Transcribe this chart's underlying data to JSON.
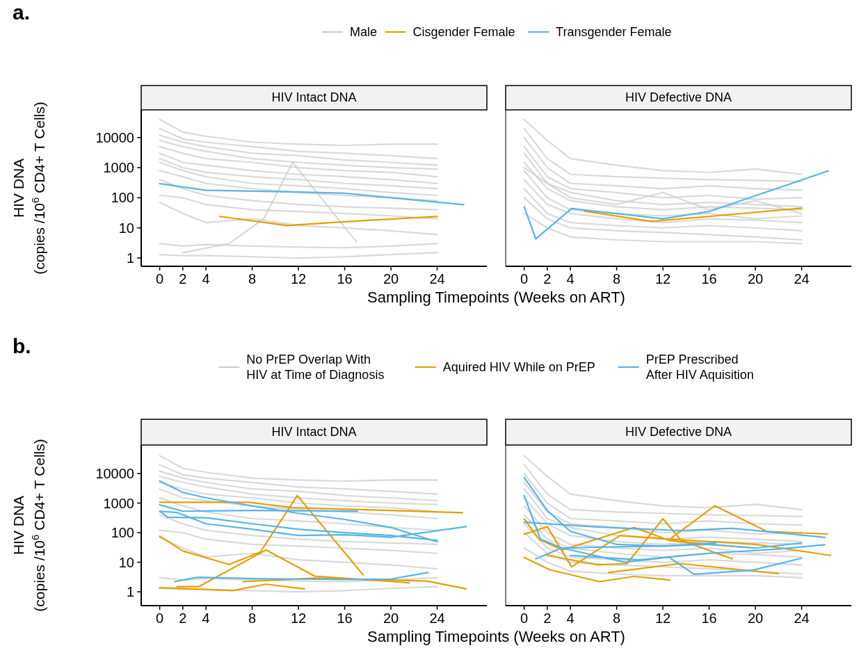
{
  "chart_data": [
    {
      "type": "line",
      "title": "HIV Intact DNA",
      "annotations": [
        "a."
      ],
      "xlabel": "Sampling Timepoints (Weeks on ART)",
      "ylabel": "HIV DNA\n(copies /10$^{6}$ CD4+ T Cells)",
      "log": "y",
      "legend": "top",
      "xlim": [
        -1.6,
        28.3
      ],
      "xticks": [
        0,
        2,
        4,
        8,
        12,
        16,
        20,
        24
      ],
      "ylim": [
        0.53,
        83000
      ],
      "yticks": [
        1,
        10,
        100,
        1000,
        10000
      ],
      "x": [
        0,
        2,
        4,
        8,
        12,
        16,
        20,
        24
      ],
      "series": [
        {
          "name": "Male",
          "color": "#cccccc",
          "values": [
            40000,
            15000,
            11000,
            7000,
            6000,
            5500,
            6000,
            6000
          ]
        },
        {
          "color": "#cccccc",
          "values": [
            20000,
            9000,
            7000,
            5000,
            3500,
            3000,
            2500,
            2000
          ]
        },
        {
          "color": "#cccccc",
          "values": [
            12000,
            7000,
            5000,
            3000,
            2500,
            1800,
            1500,
            1200
          ]
        },
        {
          "color": "#cccccc",
          "values": [
            8000,
            5000,
            3500,
            2000,
            1500,
            1200,
            1000,
            900
          ]
        },
        {
          "color": "#cccccc",
          "values": [
            5000,
            3000,
            2000,
            1500,
            1000,
            800,
            700,
            500
          ]
        },
        {
          "color": "#cccccc",
          "values": [
            3000,
            1500,
            1200,
            800,
            600,
            500,
            400,
            300
          ]
        },
        {
          "color": "#cccccc",
          "values": [
            2000,
            1000,
            700,
            500,
            400,
            300,
            250,
            200
          ]
        },
        {
          "color": "#cccccc",
          "values": [
            1500,
            800,
            500,
            300,
            250,
            200,
            150,
            120
          ]
        },
        {
          "color": "#cccccc",
          "values": [
            800,
            500,
            300,
            200,
            150,
            120,
            100,
            80
          ]
        },
        {
          "color": "#cccccc",
          "values": [
            400,
            200,
            120,
            80,
            60,
            50,
            45,
            40
          ]
        },
        {
          "color": "#cccccc",
          "values": [
            120,
            100,
            60,
            40,
            35,
            30,
            25,
            20
          ]
        },
        {
          "color": "#cccccc",
          "values": [
            70,
            30,
            15,
            20,
            12,
            10,
            8,
            6
          ]
        },
        {
          "color": "#cccccc",
          "values": [
            3,
            2.5,
            2.8,
            2.5,
            2.3,
            2.2,
            2.5,
            3
          ]
        },
        {
          "color": "#cccccc",
          "values": [
            1.3,
            1.2,
            1.2,
            1.1,
            1,
            1.1,
            1.3,
            1.5
          ]
        },
        {
          "color": "#cccccc",
          "x": [
            2,
            6,
            9,
            11.5,
            17
          ],
          "values": [
            1.5,
            3,
            20,
            1500,
            3.5
          ]
        },
        {
          "name": "Cisgender Female",
          "color": "#e69f00",
          "x": [
            5.2,
            11,
            16,
            24
          ],
          "values": [
            24,
            12,
            16,
            24
          ]
        },
        {
          "name": "Transgender Female",
          "color": "#56b4e9",
          "x": [
            0,
            4,
            12,
            16,
            26.3
          ],
          "values": [
            295,
            178,
            155,
            142,
            59
          ]
        }
      ]
    },
    {
      "type": "line",
      "title": "HIV Defective DNA",
      "tick_labels": "x",
      "log": "y",
      "xlim": [
        -1.6,
        28.3
      ],
      "xticks": [
        0,
        2,
        4,
        8,
        12,
        16,
        20,
        24
      ],
      "ylim": [
        0.53,
        83000
      ],
      "yticks": [
        1,
        10,
        100,
        1000,
        10000
      ],
      "x": [
        0,
        2,
        4,
        8,
        12,
        16,
        20,
        24
      ],
      "series": [
        {
          "color": "#cccccc",
          "values": [
            40000,
            8000,
            2000,
            1200,
            800,
            700,
            900,
            600
          ]
        },
        {
          "color": "#cccccc",
          "values": [
            20000,
            2000,
            600,
            500,
            450,
            400,
            380,
            350
          ]
        },
        {
          "color": "#cccccc",
          "values": [
            10000,
            1000,
            300,
            250,
            200,
            250,
            200,
            180
          ]
        },
        {
          "color": "#cccccc",
          "values": [
            5000,
            500,
            200,
            150,
            100,
            120,
            90,
            100
          ]
        },
        {
          "color": "#cccccc",
          "values": [
            3000,
            300,
            150,
            80,
            60,
            70,
            60,
            50
          ]
        },
        {
          "color": "#cccccc",
          "values": [
            1500,
            200,
            80,
            50,
            40,
            50,
            45,
            40
          ]
        },
        {
          "color": "#cccccc",
          "values": [
            800,
            100,
            40,
            30,
            25,
            30,
            20,
            25
          ]
        },
        {
          "color": "#cccccc",
          "values": [
            400,
            60,
            30,
            20,
            15,
            20,
            18,
            15
          ]
        },
        {
          "color": "#cccccc",
          "values": [
            200,
            30,
            15,
            12,
            10,
            12,
            10,
            8
          ]
        },
        {
          "color": "#cccccc",
          "values": [
            100,
            20,
            10,
            8,
            7,
            6,
            5,
            4
          ]
        },
        {
          "color": "#cccccc",
          "values": [
            30,
            10,
            5,
            4,
            3.5,
            3.5,
            3.5,
            3
          ]
        },
        {
          "color": "#cccccc",
          "values": [
            1000,
            300,
            100,
            60,
            150,
            40,
            80,
            30
          ]
        },
        {
          "color": "#e69f00",
          "x": [
            5.2,
            11,
            16,
            24
          ],
          "values": [
            36,
            16.5,
            24,
            45
          ]
        },
        {
          "color": "#56b4e9",
          "x": [
            0,
            1,
            4.1,
            12,
            16,
            26.3
          ],
          "values": [
            50,
            4.3,
            44,
            20,
            35,
            780
          ]
        }
      ]
    },
    {
      "type": "line",
      "title": "HIV Intact DNA",
      "annotations": [
        "b."
      ],
      "xlabel": "Sampling Timepoints (Weeks on ART)",
      "ylabel": "HIV DNA\n(copies /10$^{6}$ CD4+ T Cells)",
      "log": "y",
      "legend": "top",
      "xlim": [
        -1.6,
        28.3
      ],
      "xticks": [
        0,
        2,
        4,
        8,
        12,
        16,
        20,
        24
      ],
      "ylim": [
        0.34,
        92000
      ],
      "yticks": [
        1,
        10,
        100,
        1000,
        10000
      ],
      "x": [
        0,
        2,
        4,
        8,
        12,
        16,
        20,
        24
      ],
      "series": [
        {
          "name": "No PrEP Overlap With\nHIV at Time of Diagnosis",
          "color": "#cccccc",
          "values": [
            40000,
            15000,
            11000,
            7000,
            6000,
            5500,
            6000,
            6000
          ]
        },
        {
          "color": "#cccccc",
          "values": [
            20000,
            9000,
            7000,
            5000,
            3500,
            3000,
            2500,
            2000
          ]
        },
        {
          "color": "#cccccc",
          "values": [
            12000,
            7000,
            5000,
            3000,
            2500,
            1800,
            1500,
            1200
          ]
        },
        {
          "color": "#cccccc",
          "values": [
            8000,
            5000,
            3500,
            2000,
            1500,
            1200,
            1000,
            900
          ]
        },
        {
          "color": "#cccccc",
          "values": [
            5000,
            3000,
            2000,
            1500,
            1000,
            800,
            700,
            500
          ]
        },
        {
          "color": "#cccccc",
          "values": [
            3000,
            1500,
            1200,
            800,
            600,
            500,
            400,
            300
          ]
        },
        {
          "color": "#cccccc",
          "values": [
            1500,
            800,
            500,
            300,
            250,
            200,
            150,
            120
          ]
        },
        {
          "color": "#cccccc",
          "values": [
            400,
            200,
            120,
            80,
            60,
            50,
            45,
            40
          ]
        },
        {
          "color": "#cccccc",
          "values": [
            120,
            100,
            60,
            40,
            35,
            30,
            25,
            20
          ]
        },
        {
          "color": "#cccccc",
          "values": [
            70,
            30,
            15,
            20,
            12,
            10,
            8,
            6
          ]
        },
        {
          "color": "#cccccc",
          "values": [
            3,
            2.5,
            2.8,
            2.5,
            2.3,
            2.2,
            2.5,
            3
          ]
        },
        {
          "color": "#cccccc",
          "values": [
            1.3,
            1.2,
            1.2,
            1.1,
            1,
            1.1,
            1.3,
            1.5
          ]
        },
        {
          "name": "Aquired HIV While on PrEP",
          "color": "#e69f00",
          "x": [
            0,
            2.2,
            7.7,
            11.5,
            20,
            26.2
          ],
          "values": [
            1060,
            1060,
            1060,
            700,
            560,
            470
          ]
        },
        {
          "color": "#e69f00",
          "x": [
            0,
            2,
            6,
            8.7,
            11.9,
            17.6
          ],
          "values": [
            76,
            24,
            8.4,
            22,
            1800,
            3.7
          ]
        },
        {
          "color": "#e69f00",
          "x": [
            1.5,
            3.4,
            9.2,
            13.4,
            21.6
          ],
          "values": [
            1.5,
            1.5,
            26,
            3.4,
            2
          ]
        },
        {
          "color": "#e69f00",
          "x": [
            0,
            6.3,
            9.2,
            12.5
          ],
          "values": [
            1.38,
            1.1,
            1.8,
            1.26
          ]
        },
        {
          "color": "#e69f00",
          "x": [
            7.2,
            13.4,
            23.1,
            26.5
          ],
          "values": [
            2.2,
            2.9,
            2.3,
            1.26
          ]
        },
        {
          "name": "PrEP Prescribed\nAfter HIV Aquisition",
          "color": "#56b4e9",
          "x": [
            0,
            2,
            4,
            8,
            12,
            16,
            20,
            24
          ],
          "values": [
            5600,
            2300,
            1500,
            800,
            450,
            280,
            150,
            49
          ]
        },
        {
          "color": "#56b4e9",
          "x": [
            0,
            2,
            4,
            8,
            12,
            17.1
          ],
          "values": [
            870,
            530,
            540,
            560,
            550,
            530
          ]
        },
        {
          "color": "#56b4e9",
          "x": [
            0,
            0.7,
            4,
            8,
            12,
            16,
            20,
            24
          ],
          "values": [
            530,
            330,
            320,
            200,
            130,
            100,
            80,
            55
          ]
        },
        {
          "color": "#56b4e9",
          "x": [
            0,
            1.5,
            4,
            8,
            12,
            16,
            20,
            26.5
          ],
          "values": [
            530,
            480,
            200,
            130,
            80,
            85,
            70,
            160
          ]
        },
        {
          "color": "#56b4e9",
          "x": [
            1.3,
            3.3,
            8,
            12,
            16,
            20,
            23.2
          ],
          "values": [
            2.2,
            3.1,
            2.8,
            2.7,
            2.6,
            2.7,
            4.5
          ]
        }
      ]
    },
    {
      "type": "line",
      "title": "HIV Defective DNA",
      "tick_labels": "x",
      "log": "y",
      "xlim": [
        -1.6,
        28.3
      ],
      "xticks": [
        0,
        2,
        4,
        8,
        12,
        16,
        20,
        24
      ],
      "ylim": [
        0.34,
        92000
      ],
      "yticks": [
        1,
        10,
        100,
        1000,
        10000
      ],
      "x": [
        0,
        2,
        4,
        8,
        12,
        16,
        20,
        24
      ],
      "series": [
        {
          "color": "#cccccc",
          "values": [
            40000,
            8000,
            2000,
            1200,
            800,
            700,
            900,
            600
          ]
        },
        {
          "color": "#cccccc",
          "values": [
            20000,
            2000,
            600,
            500,
            450,
            400,
            380,
            350
          ]
        },
        {
          "color": "#cccccc",
          "values": [
            10000,
            1000,
            300,
            250,
            200,
            250,
            200,
            180
          ]
        },
        {
          "color": "#cccccc",
          "values": [
            5000,
            500,
            200,
            150,
            100,
            120,
            90,
            100
          ]
        },
        {
          "color": "#cccccc",
          "values": [
            3000,
            300,
            150,
            80,
            60,
            70,
            60,
            50
          ]
        },
        {
          "color": "#cccccc",
          "values": [
            1500,
            200,
            80,
            50,
            40,
            50,
            45,
            40
          ]
        },
        {
          "color": "#cccccc",
          "values": [
            800,
            100,
            40,
            30,
            25,
            30,
            20,
            25
          ]
        },
        {
          "color": "#cccccc",
          "values": [
            400,
            60,
            30,
            20,
            15,
            20,
            18,
            15
          ]
        },
        {
          "color": "#cccccc",
          "values": [
            200,
            30,
            15,
            12,
            10,
            12,
            10,
            8
          ]
        },
        {
          "color": "#cccccc",
          "values": [
            100,
            20,
            10,
            8,
            7,
            6,
            5,
            4
          ]
        },
        {
          "color": "#cccccc",
          "values": [
            30,
            10,
            5,
            4,
            3.5,
            3.5,
            3.5,
            3
          ]
        },
        {
          "color": "#e69f00",
          "x": [
            0,
            1.3,
            3.3,
            9.5,
            12.6,
            16,
            20
          ],
          "values": [
            295,
            59,
            26,
            150,
            54,
            40,
            30
          ]
        },
        {
          "color": "#e69f00",
          "x": [
            0,
            2,
            4.1,
            8.3,
            12.6,
            16,
            20,
            26.5
          ],
          "values": [
            88,
            160,
            7,
            80,
            60,
            50,
            40,
            17
          ]
        },
        {
          "color": "#e69f00",
          "x": [
            2,
            6.4,
            8.9,
            12,
            13.6,
            18
          ],
          "values": [
            17,
            8.1,
            9,
            295,
            54,
            13
          ]
        },
        {
          "color": "#e69f00",
          "x": [
            12.6,
            16.5,
            21,
            26.2
          ],
          "values": [
            60,
            810,
            110,
            90
          ]
        },
        {
          "color": "#e69f00",
          "x": [
            0,
            2.2,
            6.5,
            9.5,
            12.6
          ],
          "values": [
            14.5,
            5.6,
            2.2,
            3.3,
            2.5
          ]
        },
        {
          "color": "#e69f00",
          "x": [
            7.3,
            13.5,
            22
          ],
          "values": [
            4.5,
            9,
            4.1
          ]
        },
        {
          "color": "#56b4e9",
          "x": [
            0,
            2,
            4,
            8,
            12,
            16,
            20,
            24
          ],
          "values": [
            7400,
            560,
            110,
            40,
            35,
            40,
            30,
            45
          ]
        },
        {
          "color": "#56b4e9",
          "x": [
            0,
            1.4,
            3.3,
            8.7,
            12.5,
            14.7,
            19.8,
            24
          ],
          "values": [
            1800,
            61,
            30,
            10,
            15,
            3.9,
            5.4,
            13.7
          ]
        },
        {
          "color": "#56b4e9",
          "x": [
            0,
            6.3,
            13.5,
            18,
            20.6,
            26
          ],
          "values": [
            225,
            156,
            118,
            140,
            112,
            69
          ]
        },
        {
          "color": "#56b4e9",
          "x": [
            1,
            3.2,
            7.5,
            12,
            16.6
          ],
          "values": [
            13,
            30,
            33,
            35,
            45
          ]
        },
        {
          "color": "#56b4e9",
          "x": [
            4,
            10,
            16,
            22,
            26
          ],
          "values": [
            17,
            12,
            20,
            28,
            39
          ]
        }
      ]
    }
  ]
}
